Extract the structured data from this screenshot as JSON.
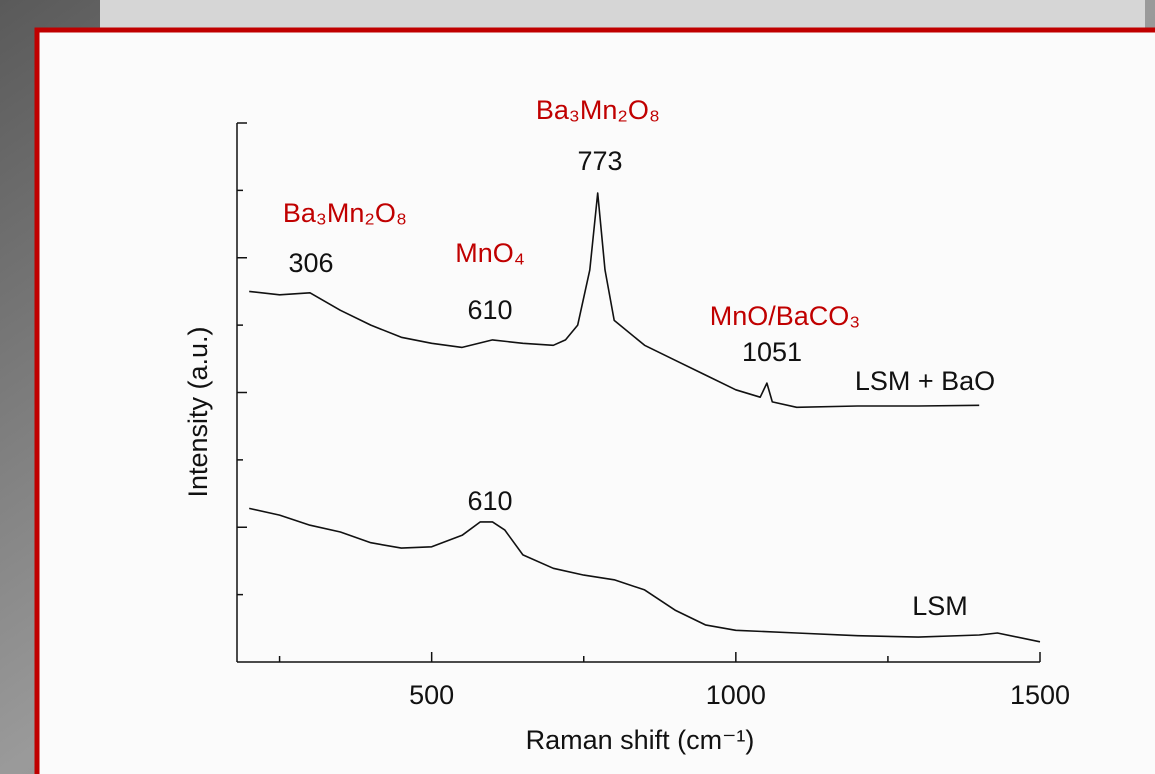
{
  "chart_data": {
    "type": "line",
    "x_label": "Raman shift (cm⁻¹)",
    "y_label": "Intensity (a.u.)",
    "xlim": [
      180,
      1500
    ],
    "xticks": [
      500,
      1000,
      1500
    ],
    "xticks_minor": [
      250,
      750,
      1250
    ],
    "ylim": [
      0,
      8
    ],
    "yticks": [
      2,
      4,
      6,
      8
    ],
    "yticks_minor": [
      1,
      3,
      5,
      7
    ],
    "series": [
      {
        "name": "LSM + BaO",
        "color": "#111111",
        "x": [
          200,
          250,
          300,
          350,
          400,
          450,
          500,
          550,
          600,
          650,
          700,
          720,
          740,
          760,
          773,
          785,
          800,
          850,
          900,
          950,
          1000,
          1040,
          1051,
          1060,
          1100,
          1200,
          1300,
          1400
        ],
        "values": [
          5.5,
          5.45,
          5.48,
          5.22,
          5.0,
          4.82,
          4.73,
          4.67,
          4.78,
          4.73,
          4.7,
          4.78,
          5.0,
          5.82,
          6.96,
          5.82,
          5.07,
          4.7,
          4.48,
          4.26,
          4.04,
          3.93,
          4.14,
          3.86,
          3.78,
          3.8,
          3.8,
          3.81
        ]
      },
      {
        "name": "LSM",
        "color": "#111111",
        "x": [
          200,
          250,
          300,
          350,
          400,
          450,
          500,
          550,
          580,
          600,
          620,
          650,
          700,
          750,
          800,
          850,
          900,
          950,
          1000,
          1100,
          1200,
          1300,
          1400,
          1430,
          1500
        ],
        "values": [
          2.28,
          2.18,
          2.03,
          1.93,
          1.77,
          1.69,
          1.71,
          1.88,
          2.08,
          2.08,
          1.96,
          1.59,
          1.39,
          1.29,
          1.22,
          1.07,
          0.77,
          0.55,
          0.47,
          0.43,
          0.39,
          0.37,
          0.4,
          0.43,
          0.3
        ]
      }
    ],
    "annotations": [
      {
        "text": "Ba₃Mn₂O₈",
        "color": "#c00000"
      },
      {
        "text": "773",
        "color": "#111111"
      },
      {
        "text": "Ba₃Mn₂O₈",
        "color": "#c00000"
      },
      {
        "text": "306",
        "color": "#111111"
      },
      {
        "text": "MnO₄",
        "color": "#c00000"
      },
      {
        "text": "610",
        "color": "#111111"
      },
      {
        "text": "MnO/BaCO₃",
        "color": "#c00000"
      },
      {
        "text": "1051",
        "color": "#111111"
      },
      {
        "text": "610",
        "color": "#111111"
      }
    ]
  }
}
